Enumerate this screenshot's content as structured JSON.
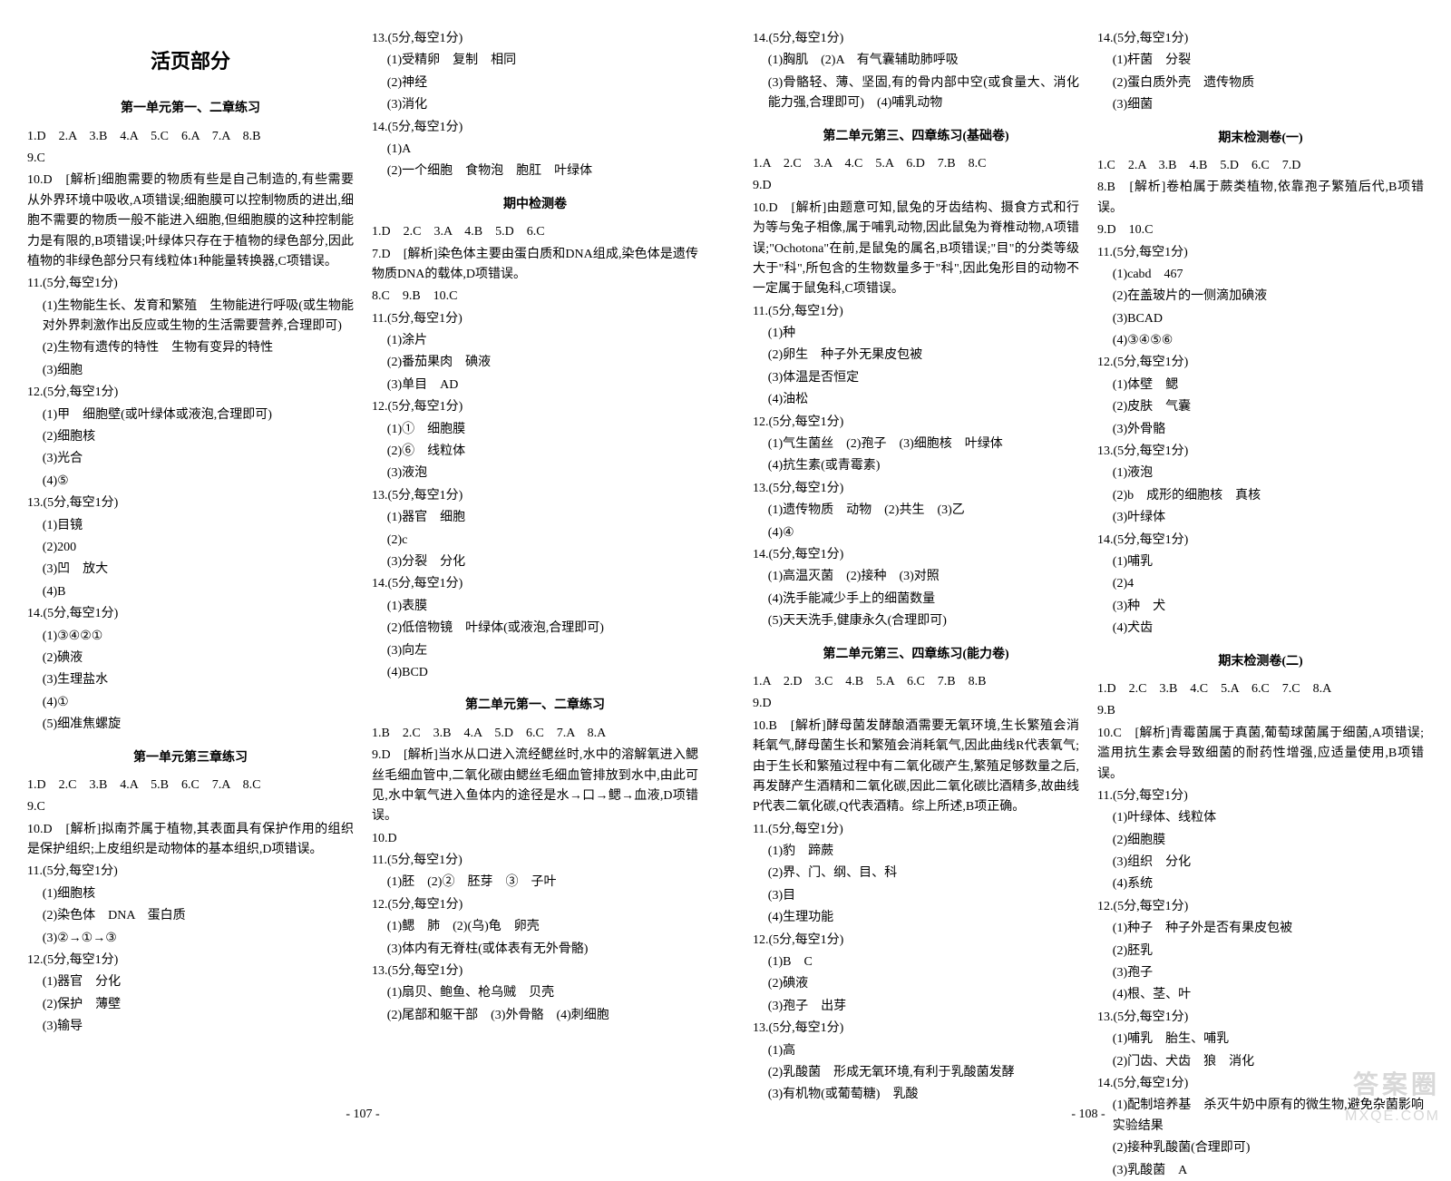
{
  "watermark": {
    "line1": "答案圈",
    "line2": "MXQE.COM"
  },
  "pages": [
    {
      "num": "- 107 -",
      "cols": [
        [
          {
            "t": "main-title",
            "v": "活页部分"
          },
          {
            "t": "section-title",
            "v": "第一单元第一、二章练习"
          },
          {
            "t": "line",
            "v": "1.D　2.A　3.B　4.A　5.C　6.A　7.A　8.B"
          },
          {
            "t": "line",
            "v": "9.C"
          },
          {
            "t": "line",
            "v": "10.D　[解析]细胞需要的物质有些是自己制造的,有些需要从外界环境中吸收,A项错误;细胞膜可以控制物质的进出,细胞不需要的物质一般不能进入细胞,但细胞膜的这种控制能力是有限的,B项错误;叶绿体只存在于植物的绿色部分,因此植物的非绿色部分只有线粒体1种能量转换器,C项错误。"
          },
          {
            "t": "line",
            "v": "11.(5分,每空1分)"
          },
          {
            "t": "line",
            "cls": "indent1",
            "v": "(1)生物能生长、发育和繁殖　生物能进行呼吸(或生物能对外界刺激作出反应或生物的生活需要营养,合理即可)"
          },
          {
            "t": "line",
            "cls": "indent1",
            "v": "(2)生物有遗传的特性　生物有变异的特性"
          },
          {
            "t": "line",
            "cls": "indent1",
            "v": "(3)细胞"
          },
          {
            "t": "line",
            "v": "12.(5分,每空1分)"
          },
          {
            "t": "line",
            "cls": "indent1",
            "v": "(1)甲　细胞壁(或叶绿体或液泡,合理即可)"
          },
          {
            "t": "line",
            "cls": "indent1",
            "v": "(2)细胞核"
          },
          {
            "t": "line",
            "cls": "indent1",
            "v": "(3)光合"
          },
          {
            "t": "line",
            "cls": "indent1",
            "v": "(4)⑤"
          },
          {
            "t": "line",
            "v": "13.(5分,每空1分)"
          },
          {
            "t": "line",
            "cls": "indent1",
            "v": "(1)目镜"
          },
          {
            "t": "line",
            "cls": "indent1",
            "v": "(2)200"
          },
          {
            "t": "line",
            "cls": "indent1",
            "v": "(3)凹　放大"
          },
          {
            "t": "line",
            "cls": "indent1",
            "v": "(4)B"
          },
          {
            "t": "line",
            "v": "14.(5分,每空1分)"
          },
          {
            "t": "line",
            "cls": "indent1",
            "v": "(1)③④②①"
          },
          {
            "t": "line",
            "cls": "indent1",
            "v": "(2)碘液"
          },
          {
            "t": "line",
            "cls": "indent1",
            "v": "(3)生理盐水"
          },
          {
            "t": "line",
            "cls": "indent1",
            "v": "(4)①"
          },
          {
            "t": "line",
            "cls": "indent1",
            "v": "(5)细准焦螺旋"
          },
          {
            "t": "section-title",
            "v": "第一单元第三章练习"
          },
          {
            "t": "line",
            "v": "1.D　2.C　3.B　4.A　5.B　6.C　7.A　8.C"
          },
          {
            "t": "line",
            "v": "9.C"
          },
          {
            "t": "line",
            "v": "10.D　[解析]拟南芥属于植物,其表面具有保护作用的组织是保护组织;上皮组织是动物体的基本组织,D项错误。"
          },
          {
            "t": "line",
            "v": "11.(5分,每空1分)"
          },
          {
            "t": "line",
            "cls": "indent1",
            "v": "(1)细胞核"
          },
          {
            "t": "line",
            "cls": "indent1",
            "v": "(2)染色体　DNA　蛋白质"
          },
          {
            "t": "line",
            "cls": "indent1",
            "v": "(3)②→①→③"
          },
          {
            "t": "line",
            "v": "12.(5分,每空1分)"
          },
          {
            "t": "line",
            "cls": "indent1",
            "v": "(1)器官　分化"
          },
          {
            "t": "line",
            "cls": "indent1",
            "v": "(2)保护　薄壁"
          },
          {
            "t": "line",
            "cls": "indent1",
            "v": "(3)输导"
          }
        ],
        [
          {
            "t": "line",
            "v": "13.(5分,每空1分)"
          },
          {
            "t": "line",
            "cls": "indent1",
            "v": "(1)受精卵　复制　相同"
          },
          {
            "t": "line",
            "cls": "indent1",
            "v": "(2)神经"
          },
          {
            "t": "line",
            "cls": "indent1",
            "v": "(3)消化"
          },
          {
            "t": "line",
            "v": "14.(5分,每空1分)"
          },
          {
            "t": "line",
            "cls": "indent1",
            "v": "(1)A"
          },
          {
            "t": "line",
            "cls": "indent1",
            "v": "(2)一个细胞　食物泡　胞肛　叶绿体"
          },
          {
            "t": "section-title",
            "v": "期中检测卷"
          },
          {
            "t": "line",
            "v": "1.D　2.C　3.A　4.B　5.D　6.C"
          },
          {
            "t": "line",
            "v": "7.D　[解析]染色体主要由蛋白质和DNA组成,染色体是遗传物质DNA的载体,D项错误。"
          },
          {
            "t": "line",
            "v": "8.C　9.B　10.C"
          },
          {
            "t": "line",
            "v": "11.(5分,每空1分)"
          },
          {
            "t": "line",
            "cls": "indent1",
            "v": "(1)涂片"
          },
          {
            "t": "line",
            "cls": "indent1",
            "v": "(2)番茄果肉　碘液"
          },
          {
            "t": "line",
            "cls": "indent1",
            "v": "(3)单目　AD"
          },
          {
            "t": "line",
            "v": "12.(5分,每空1分)"
          },
          {
            "t": "line",
            "cls": "indent1",
            "v": "(1)①　细胞膜"
          },
          {
            "t": "line",
            "cls": "indent1",
            "v": "(2)⑥　线粒体"
          },
          {
            "t": "line",
            "cls": "indent1",
            "v": "(3)液泡"
          },
          {
            "t": "line",
            "v": "13.(5分,每空1分)"
          },
          {
            "t": "line",
            "cls": "indent1",
            "v": "(1)器官　细胞"
          },
          {
            "t": "line",
            "cls": "indent1",
            "v": "(2)c"
          },
          {
            "t": "line",
            "cls": "indent1",
            "v": "(3)分裂　分化"
          },
          {
            "t": "line",
            "v": "14.(5分,每空1分)"
          },
          {
            "t": "line",
            "cls": "indent1",
            "v": "(1)表膜"
          },
          {
            "t": "line",
            "cls": "indent1",
            "v": "(2)低倍物镜　叶绿体(或液泡,合理即可)"
          },
          {
            "t": "line",
            "cls": "indent1",
            "v": "(3)向左"
          },
          {
            "t": "line",
            "cls": "indent1",
            "v": "(4)BCD"
          },
          {
            "t": "section-title",
            "v": "第二单元第一、二章练习"
          },
          {
            "t": "line",
            "v": "1.B　2.C　3.B　4.A　5.D　6.C　7.A　8.A"
          },
          {
            "t": "line",
            "v": "9.D　[解析]当水从口进入流经鳃丝时,水中的溶解氧进入鳃丝毛细血管中,二氧化碳由鳃丝毛细血管排放到水中,由此可见,水中氧气进入鱼体内的途径是水→口→鳃→血液,D项错误。"
          },
          {
            "t": "line",
            "v": "10.D"
          },
          {
            "t": "line",
            "v": "11.(5分,每空1分)"
          },
          {
            "t": "line",
            "cls": "indent1",
            "v": "(1)胚　(2)②　胚芽　③　子叶"
          },
          {
            "t": "line",
            "v": "12.(5分,每空1分)"
          },
          {
            "t": "line",
            "cls": "indent1",
            "v": "(1)鳃　肺　(2)(乌)龟　卵壳"
          },
          {
            "t": "line",
            "cls": "indent1",
            "v": "(3)体内有无脊柱(或体表有无外骨骼)"
          },
          {
            "t": "line",
            "v": "13.(5分,每空1分)"
          },
          {
            "t": "line",
            "cls": "indent1",
            "v": "(1)扇贝、鲍鱼、枪乌贼　贝壳"
          },
          {
            "t": "line",
            "cls": "indent1",
            "v": "(2)尾部和躯干部　(3)外骨骼　(4)刺细胞"
          }
        ]
      ]
    },
    {
      "num": "- 108 -",
      "cols": [
        [
          {
            "t": "line",
            "v": "14.(5分,每空1分)"
          },
          {
            "t": "line",
            "cls": "indent1",
            "v": "(1)胸肌　(2)A　有气囊辅助肺呼吸"
          },
          {
            "t": "line",
            "cls": "indent1",
            "v": "(3)骨骼轻、薄、坚固,有的骨内部中空(或食量大、消化能力强,合理即可)　(4)哺乳动物"
          },
          {
            "t": "section-title",
            "v": "第二单元第三、四章练习(基础卷)"
          },
          {
            "t": "line",
            "v": "1.A　2.C　3.A　4.C　5.A　6.D　7.B　8.C"
          },
          {
            "t": "line",
            "v": "9.D"
          },
          {
            "t": "line",
            "v": "10.D　[解析]由题意可知,鼠兔的牙齿结构、摄食方式和行为等与兔子相像,属于哺乳动物,因此鼠兔为脊椎动物,A项错误;\"Ochotona\"在前,是鼠兔的属名,B项错误;\"目\"的分类等级大于\"科\",所包含的生物数量多于\"科\",因此兔形目的动物不一定属于鼠兔科,C项错误。"
          },
          {
            "t": "line",
            "v": "11.(5分,每空1分)"
          },
          {
            "t": "line",
            "cls": "indent1",
            "v": "(1)种"
          },
          {
            "t": "line",
            "cls": "indent1",
            "v": "(2)卵生　种子外无果皮包被"
          },
          {
            "t": "line",
            "cls": "indent1",
            "v": "(3)体温是否恒定"
          },
          {
            "t": "line",
            "cls": "indent1",
            "v": "(4)油松"
          },
          {
            "t": "line",
            "v": "12.(5分,每空1分)"
          },
          {
            "t": "line",
            "cls": "indent1",
            "v": "(1)气生菌丝　(2)孢子　(3)细胞核　叶绿体"
          },
          {
            "t": "line",
            "cls": "indent1",
            "v": "(4)抗生素(或青霉素)"
          },
          {
            "t": "line",
            "v": "13.(5分,每空1分)"
          },
          {
            "t": "line",
            "cls": "indent1",
            "v": "(1)遗传物质　动物　(2)共生　(3)乙"
          },
          {
            "t": "line",
            "cls": "indent1",
            "v": "(4)④"
          },
          {
            "t": "line",
            "v": "14.(5分,每空1分)"
          },
          {
            "t": "line",
            "cls": "indent1",
            "v": "(1)高温灭菌　(2)接种　(3)对照"
          },
          {
            "t": "line",
            "cls": "indent1",
            "v": "(4)洗手能减少手上的细菌数量"
          },
          {
            "t": "line",
            "cls": "indent1",
            "v": "(5)天天洗手,健康永久(合理即可)"
          },
          {
            "t": "section-title",
            "v": "第二单元第三、四章练习(能力卷)"
          },
          {
            "t": "line",
            "v": "1.A　2.D　3.C　4.B　5.A　6.C　7.B　8.B"
          },
          {
            "t": "line",
            "v": "9.D"
          },
          {
            "t": "line",
            "v": "10.B　[解析]酵母菌发酵酿酒需要无氧环境,生长繁殖会消耗氧气,酵母菌生长和繁殖会消耗氧气,因此曲线R代表氧气;由于生长和繁殖过程中有二氧化碳产生,繁殖足够数量之后,再发酵产生酒精和二氧化碳,因此二氧化碳比酒精多,故曲线P代表二氧化碳,Q代表酒精。综上所述,B项正确。"
          },
          {
            "t": "line",
            "v": "11.(5分,每空1分)"
          },
          {
            "t": "line",
            "cls": "indent1",
            "v": "(1)豹　蹄蕨"
          },
          {
            "t": "line",
            "cls": "indent1",
            "v": "(2)界、门、纲、目、科"
          },
          {
            "t": "line",
            "cls": "indent1",
            "v": "(3)目"
          },
          {
            "t": "line",
            "cls": "indent1",
            "v": "(4)生理功能"
          },
          {
            "t": "line",
            "v": "12.(5分,每空1分)"
          },
          {
            "t": "line",
            "cls": "indent1",
            "v": "(1)B　C"
          },
          {
            "t": "line",
            "cls": "indent1",
            "v": "(2)碘液"
          },
          {
            "t": "line",
            "cls": "indent1",
            "v": "(3)孢子　出芽"
          },
          {
            "t": "line",
            "v": "13.(5分,每空1分)"
          },
          {
            "t": "line",
            "cls": "indent1",
            "v": "(1)高"
          },
          {
            "t": "line",
            "cls": "indent1",
            "v": "(2)乳酸菌　形成无氧环境,有利于乳酸菌发酵"
          },
          {
            "t": "line",
            "cls": "indent1",
            "v": "(3)有机物(或葡萄糖)　乳酸"
          }
        ],
        [
          {
            "t": "line",
            "v": "14.(5分,每空1分)"
          },
          {
            "t": "line",
            "cls": "indent1",
            "v": "(1)杆菌　分裂"
          },
          {
            "t": "line",
            "cls": "indent1",
            "v": "(2)蛋白质外壳　遗传物质"
          },
          {
            "t": "line",
            "cls": "indent1",
            "v": "(3)细菌"
          },
          {
            "t": "section-title",
            "v": "期末检测卷(一)"
          },
          {
            "t": "line",
            "v": "1.C　2.A　3.B　4.B　5.D　6.C　7.D"
          },
          {
            "t": "line",
            "v": "8.B　[解析]卷柏属于蕨类植物,依靠孢子繁殖后代,B项错误。"
          },
          {
            "t": "line",
            "v": "9.D　10.C"
          },
          {
            "t": "line",
            "v": "11.(5分,每空1分)"
          },
          {
            "t": "line",
            "cls": "indent1",
            "v": "(1)cabd　467"
          },
          {
            "t": "line",
            "cls": "indent1",
            "v": "(2)在盖玻片的一侧滴加碘液"
          },
          {
            "t": "line",
            "cls": "indent1",
            "v": "(3)BCAD"
          },
          {
            "t": "line",
            "cls": "indent1",
            "v": "(4)③④⑤⑥"
          },
          {
            "t": "line",
            "v": "12.(5分,每空1分)"
          },
          {
            "t": "line",
            "cls": "indent1",
            "v": "(1)体壁　鳃"
          },
          {
            "t": "line",
            "cls": "indent1",
            "v": "(2)皮肤　气囊"
          },
          {
            "t": "line",
            "cls": "indent1",
            "v": "(3)外骨骼"
          },
          {
            "t": "line",
            "v": "13.(5分,每空1分)"
          },
          {
            "t": "line",
            "cls": "indent1",
            "v": "(1)液泡"
          },
          {
            "t": "line",
            "cls": "indent1",
            "v": "(2)b　成形的细胞核　真核"
          },
          {
            "t": "line",
            "cls": "indent1",
            "v": "(3)叶绿体"
          },
          {
            "t": "line",
            "v": "14.(5分,每空1分)"
          },
          {
            "t": "line",
            "cls": "indent1",
            "v": "(1)哺乳"
          },
          {
            "t": "line",
            "cls": "indent1",
            "v": "(2)4"
          },
          {
            "t": "line",
            "cls": "indent1",
            "v": "(3)种　犬"
          },
          {
            "t": "line",
            "cls": "indent1",
            "v": "(4)犬齿"
          },
          {
            "t": "section-title",
            "v": "期末检测卷(二)"
          },
          {
            "t": "line",
            "v": "1.D　2.C　3.B　4.C　5.A　6.C　7.C　8.A"
          },
          {
            "t": "line",
            "v": "9.B"
          },
          {
            "t": "line",
            "v": "10.C　[解析]青霉菌属于真菌,葡萄球菌属于细菌,A项错误;滥用抗生素会导致细菌的耐药性增强,应适量使用,B项错误。"
          },
          {
            "t": "line",
            "v": "11.(5分,每空1分)"
          },
          {
            "t": "line",
            "cls": "indent1",
            "v": "(1)叶绿体、线粒体"
          },
          {
            "t": "line",
            "cls": "indent1",
            "v": "(2)细胞膜"
          },
          {
            "t": "line",
            "cls": "indent1",
            "v": "(3)组织　分化"
          },
          {
            "t": "line",
            "cls": "indent1",
            "v": "(4)系统"
          },
          {
            "t": "line",
            "v": "12.(5分,每空1分)"
          },
          {
            "t": "line",
            "cls": "indent1",
            "v": "(1)种子　种子外是否有果皮包被"
          },
          {
            "t": "line",
            "cls": "indent1",
            "v": "(2)胚乳"
          },
          {
            "t": "line",
            "cls": "indent1",
            "v": "(3)孢子"
          },
          {
            "t": "line",
            "cls": "indent1",
            "v": "(4)根、茎、叶"
          },
          {
            "t": "line",
            "v": "13.(5分,每空1分)"
          },
          {
            "t": "line",
            "cls": "indent1",
            "v": "(1)哺乳　胎生、哺乳"
          },
          {
            "t": "line",
            "cls": "indent1",
            "v": "(2)门齿、犬齿　狼　消化"
          },
          {
            "t": "line",
            "v": "14.(5分,每空1分)"
          },
          {
            "t": "line",
            "cls": "indent1",
            "v": "(1)配制培养基　杀灭牛奶中原有的微生物,避免杂菌影响实验结果"
          },
          {
            "t": "line",
            "cls": "indent1",
            "v": "(2)接种乳酸菌(合理即可)"
          },
          {
            "t": "line",
            "cls": "indent1",
            "v": "(3)乳酸菌　A"
          }
        ]
      ]
    }
  ]
}
